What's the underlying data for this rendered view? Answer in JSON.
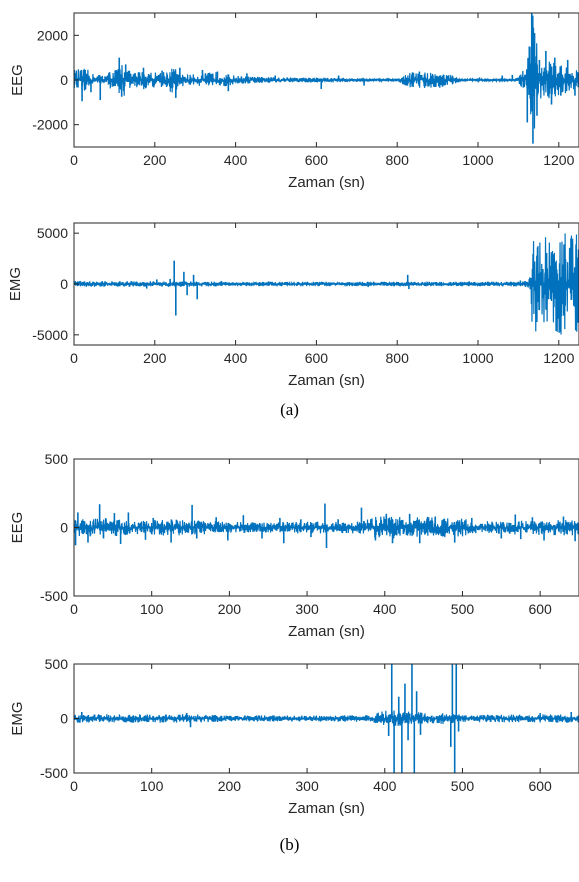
{
  "captions": {
    "a": "(a)",
    "b": "(b)"
  },
  "colors": {
    "line": "#0072BD",
    "axis": "#262626"
  },
  "chart_data": [
    {
      "type": "line",
      "ylabel": "EEG",
      "xlabel": "Zaman (sn)",
      "xlim": [
        0,
        1250
      ],
      "ylim": [
        -3000,
        3000
      ],
      "xticks": [
        0,
        200,
        400,
        600,
        800,
        1000,
        1200
      ],
      "yticks": [
        -2000,
        0,
        2000
      ],
      "grid": false,
      "series": [
        {
          "color": "#0072BD",
          "envelope": [
            [
              0,
              480
            ],
            [
              30,
              520
            ],
            [
              50,
              250
            ],
            [
              80,
              280
            ],
            [
              110,
              600
            ],
            [
              120,
              900
            ],
            [
              140,
              350
            ],
            [
              180,
              450
            ],
            [
              200,
              350
            ],
            [
              250,
              600
            ],
            [
              260,
              300
            ],
            [
              300,
              250
            ],
            [
              350,
              380
            ],
            [
              400,
              200
            ],
            [
              450,
              150
            ],
            [
              500,
              120
            ],
            [
              600,
              120
            ],
            [
              700,
              80
            ],
            [
              800,
              60
            ],
            [
              830,
              350
            ],
            [
              900,
              380
            ],
            [
              940,
              200
            ],
            [
              960,
              60
            ],
            [
              1000,
              60
            ],
            [
              1080,
              80
            ],
            [
              1100,
              120
            ],
            [
              1120,
              700
            ],
            [
              1130,
              1900
            ],
            [
              1135,
              3000
            ],
            [
              1150,
              1100
            ],
            [
              1160,
              650
            ],
            [
              1180,
              950
            ],
            [
              1200,
              700
            ],
            [
              1230,
              550
            ],
            [
              1250,
              450
            ]
          ],
          "spikes": [
            [
              20,
              -950
            ],
            [
              42,
              -550
            ],
            [
              65,
              -900
            ],
            [
              88,
              350
            ],
            [
              112,
              1000
            ],
            [
              118,
              -750
            ],
            [
              128,
              700
            ],
            [
              172,
              550
            ],
            [
              218,
              420
            ],
            [
              252,
              -800
            ],
            [
              262,
              550
            ],
            [
              318,
              450
            ],
            [
              355,
              380
            ],
            [
              382,
              -500
            ],
            [
              428,
              300
            ],
            [
              498,
              200
            ],
            [
              612,
              -400
            ],
            [
              655,
              200
            ],
            [
              718,
              -250
            ],
            [
              855,
              380
            ],
            [
              912,
              -300
            ],
            [
              1060,
              200
            ],
            [
              1085,
              230
            ],
            [
              1122,
              -1900
            ],
            [
              1127,
              1500
            ],
            [
              1133,
              3000
            ],
            [
              1136,
              -2850
            ],
            [
              1140,
              2100
            ],
            [
              1146,
              -1600
            ],
            [
              1152,
              900
            ],
            [
              1168,
              1300
            ],
            [
              1182,
              -1100
            ],
            [
              1190,
              1000
            ],
            [
              1205,
              -700
            ],
            [
              1222,
              900
            ],
            [
              1240,
              -700
            ]
          ]
        }
      ]
    },
    {
      "type": "line",
      "ylabel": "EMG",
      "xlabel": "Zaman (sn)",
      "xlim": [
        0,
        1250
      ],
      "ylim": [
        -6000,
        6000
      ],
      "xticks": [
        0,
        200,
        400,
        600,
        800,
        1000,
        1200
      ],
      "yticks": [
        -5000,
        0,
        5000
      ],
      "grid": false,
      "series": [
        {
          "color": "#0072BD",
          "envelope": [
            [
              0,
              300
            ],
            [
              100,
              280
            ],
            [
              200,
              300
            ],
            [
              300,
              260
            ],
            [
              400,
              220
            ],
            [
              600,
              220
            ],
            [
              800,
              220
            ],
            [
              1000,
              220
            ],
            [
              1100,
              250
            ],
            [
              1125,
              400
            ],
            [
              1130,
              3000
            ],
            [
              1140,
              5000
            ],
            [
              1250,
              5000
            ]
          ],
          "spikes": [
            [
              15,
              300
            ],
            [
              180,
              -450
            ],
            [
              205,
              450
            ],
            [
              238,
              500
            ],
            [
              248,
              2300
            ],
            [
              252,
              -3100
            ],
            [
              272,
              1200
            ],
            [
              280,
              -1100
            ],
            [
              296,
              900
            ],
            [
              305,
              -1500
            ],
            [
              365,
              300
            ],
            [
              482,
              250
            ],
            [
              728,
              -300
            ],
            [
              826,
              900
            ],
            [
              829,
              -500
            ],
            [
              978,
              260
            ],
            [
              1105,
              350
            ]
          ]
        }
      ]
    },
    {
      "type": "line",
      "ylabel": "EEG",
      "xlabel": "Zaman (sn)",
      "xlim": [
        0,
        650
      ],
      "ylim": [
        -500,
        500
      ],
      "xticks": [
        0,
        100,
        200,
        300,
        400,
        500,
        600
      ],
      "yticks": [
        -500,
        0,
        500
      ],
      "grid": false,
      "series": [
        {
          "color": "#0072BD",
          "envelope": [
            [
              0,
              60
            ],
            [
              40,
              70
            ],
            [
              80,
              50
            ],
            [
              120,
              60
            ],
            [
              160,
              55
            ],
            [
              200,
              40
            ],
            [
              260,
              40
            ],
            [
              300,
              45
            ],
            [
              340,
              40
            ],
            [
              370,
              45
            ],
            [
              380,
              80
            ],
            [
              420,
              85
            ],
            [
              470,
              75
            ],
            [
              500,
              65
            ],
            [
              520,
              45
            ],
            [
              560,
              50
            ],
            [
              600,
              55
            ],
            [
              650,
              60
            ]
          ],
          "spikes": [
            [
              2,
              -130
            ],
            [
              5,
              110
            ],
            [
              18,
              -110
            ],
            [
              33,
              170
            ],
            [
              38,
              -80
            ],
            [
              52,
              105
            ],
            [
              60,
              -120
            ],
            [
              70,
              110
            ],
            [
              92,
              -90
            ],
            [
              102,
              70
            ],
            [
              125,
              -110
            ],
            [
              152,
              165
            ],
            [
              158,
              -80
            ],
            [
              183,
              75
            ],
            [
              198,
              -95
            ],
            [
              218,
              90
            ],
            [
              242,
              -80
            ],
            [
              265,
              70
            ],
            [
              270,
              -115
            ],
            [
              292,
              60
            ],
            [
              305,
              -70
            ],
            [
              323,
              175
            ],
            [
              325,
              -150
            ],
            [
              340,
              60
            ],
            [
              370,
              145
            ],
            [
              388,
              -95
            ],
            [
              402,
              100
            ],
            [
              410,
              -115
            ],
            [
              432,
              100
            ],
            [
              445,
              -115
            ],
            [
              465,
              80
            ],
            [
              490,
              -110
            ],
            [
              512,
              70
            ],
            [
              550,
              -80
            ],
            [
              568,
              95
            ],
            [
              575,
              -85
            ],
            [
              590,
              75
            ],
            [
              605,
              -95
            ],
            [
              630,
              80
            ],
            [
              645,
              -100
            ]
          ]
        }
      ]
    },
    {
      "type": "line",
      "ylabel": "EMG",
      "xlabel": "Zaman (sn)",
      "xlim": [
        0,
        650
      ],
      "ylim": [
        -500,
        500
      ],
      "xticks": [
        0,
        100,
        200,
        300,
        400,
        500,
        600
      ],
      "yticks": [
        -500,
        0,
        500
      ],
      "grid": false,
      "series": [
        {
          "color": "#0072BD",
          "envelope": [
            [
              0,
              40
            ],
            [
              100,
              38
            ],
            [
              140,
              40
            ],
            [
              200,
              30
            ],
            [
              300,
              28
            ],
            [
              380,
              32
            ],
            [
              400,
              80
            ],
            [
              420,
              70
            ],
            [
              440,
              60
            ],
            [
              470,
              55
            ],
            [
              500,
              35
            ],
            [
              560,
              35
            ],
            [
              650,
              40
            ]
          ],
          "spikes": [
            [
              10,
              60
            ],
            [
              145,
              50
            ],
            [
              150,
              -80
            ],
            [
              405,
              -160
            ],
            [
              409,
              500
            ],
            [
              412,
              -500
            ],
            [
              418,
              200
            ],
            [
              422,
              -500
            ],
            [
              426,
              320
            ],
            [
              430,
              -200
            ],
            [
              435,
              500
            ],
            [
              438,
              -500
            ],
            [
              441,
              250
            ],
            [
              446,
              -150
            ],
            [
              485,
              -260
            ],
            [
              487,
              500
            ],
            [
              490,
              -500
            ],
            [
              492,
              500
            ],
            [
              495,
              -120
            ],
            [
              600,
              50
            ],
            [
              640,
              60
            ]
          ]
        }
      ]
    }
  ]
}
